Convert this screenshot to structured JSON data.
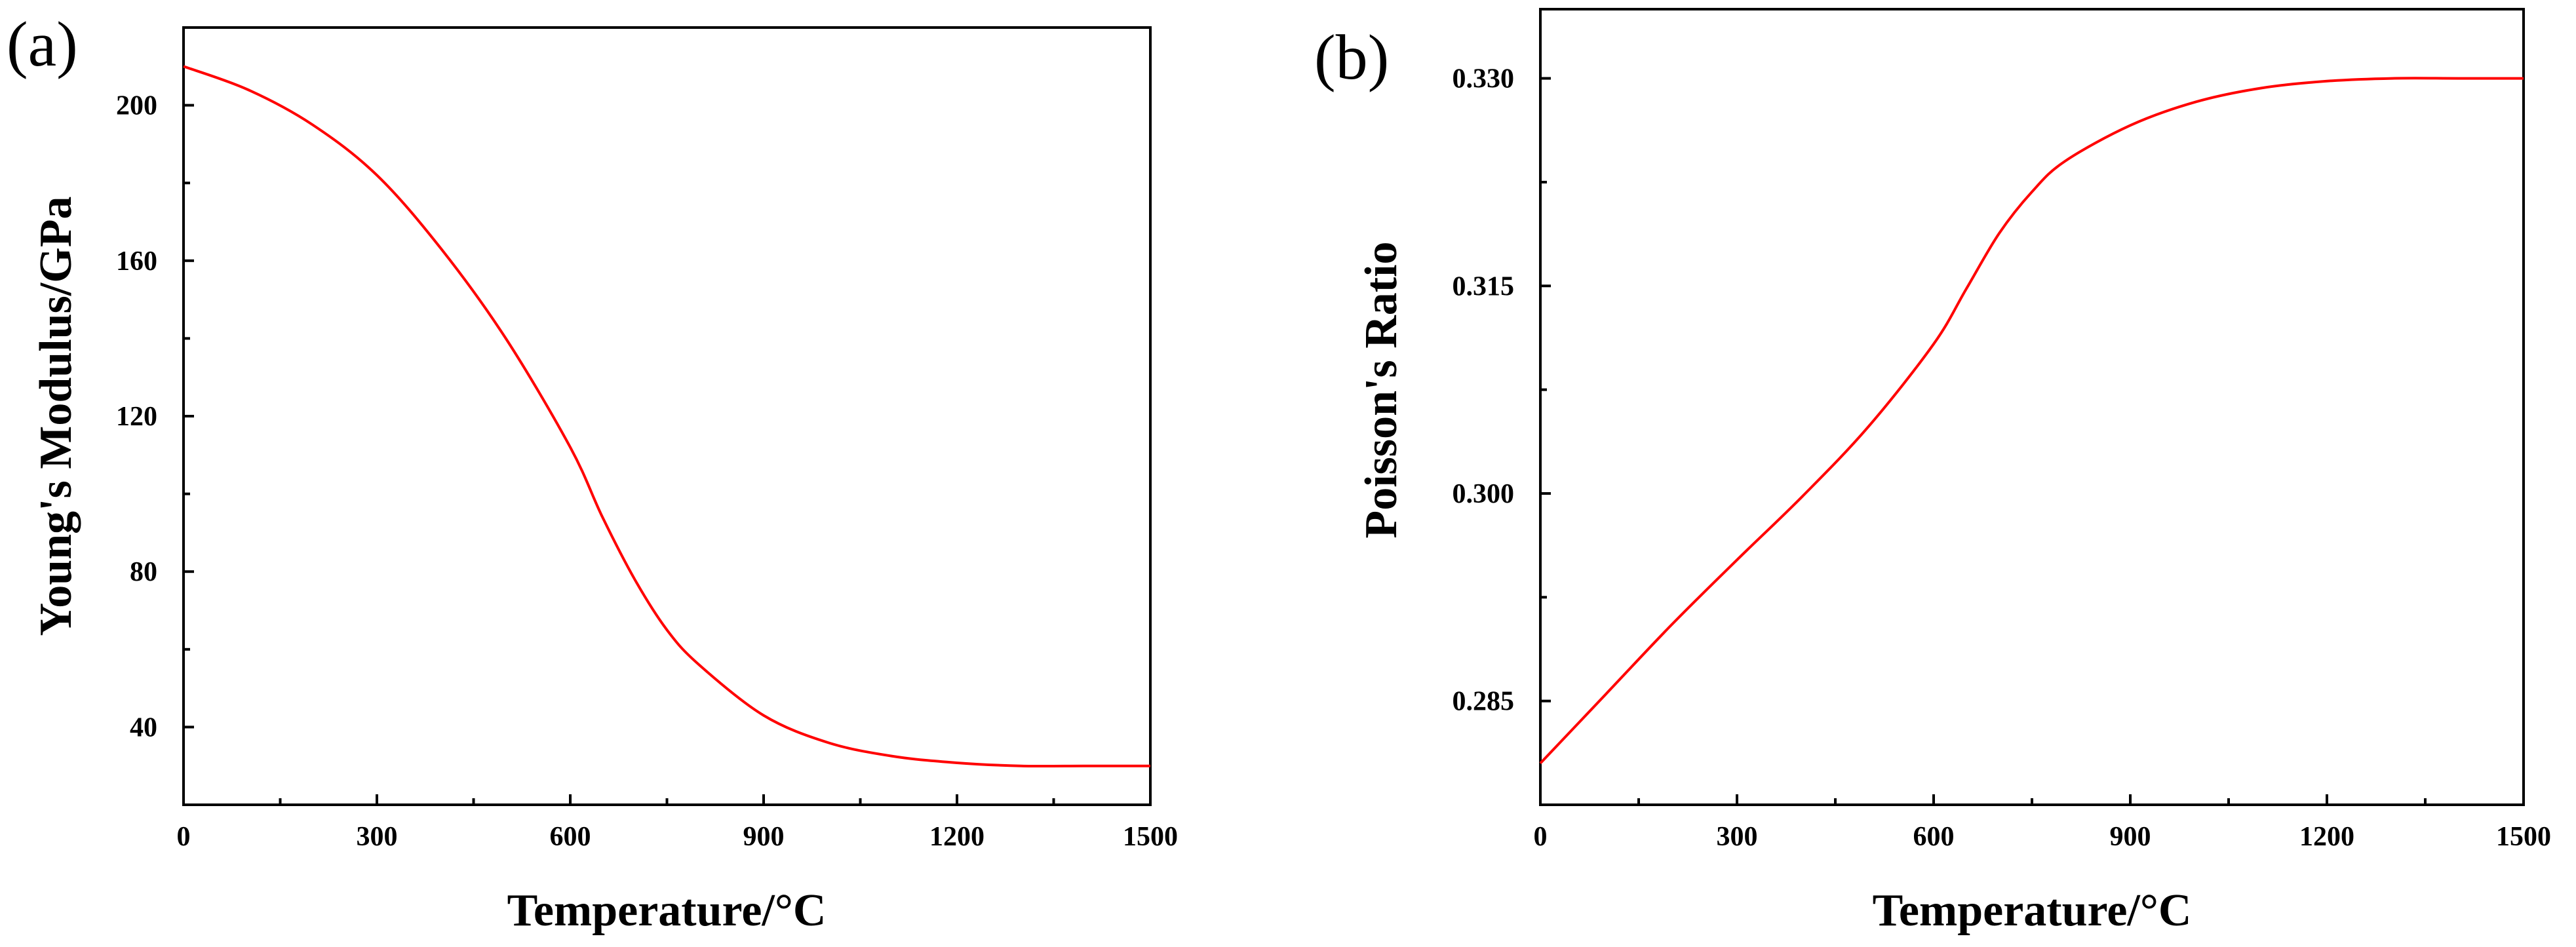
{
  "chart_data": [
    {
      "panel_label": "(a)",
      "type": "line",
      "title": "",
      "xlabel": "Temperature/°C",
      "ylabel": "Young's Modulus/GPa",
      "xlim": [
        0,
        1500
      ],
      "ylim": [
        20,
        220
      ],
      "xticks": [
        0,
        300,
        600,
        900,
        1200,
        1500
      ],
      "xtick_labels": [
        "0",
        "300",
        "600",
        "900",
        "1200",
        "1500"
      ],
      "yticks": [
        40,
        80,
        120,
        160,
        200
      ],
      "ytick_labels": [
        "40",
        "80",
        "120",
        "160",
        "200"
      ],
      "grid": false,
      "series": [
        {
          "name": "Young's Modulus",
          "color": "#ff0000",
          "x": [
            0,
            100,
            200,
            300,
            400,
            500,
            600,
            650,
            700,
            750,
            800,
            900,
            1000,
            1100,
            1200,
            1300,
            1400,
            1500
          ],
          "y": [
            210,
            204,
            195,
            182,
            163,
            140,
            112,
            94,
            78,
            65,
            56,
            43,
            36,
            32.5,
            30.8,
            30,
            30,
            30
          ]
        }
      ]
    },
    {
      "panel_label": "(b)",
      "type": "line",
      "title": "",
      "xlabel": "Temperature/°C",
      "ylabel": "Poisson's Ratio",
      "xlim": [
        0,
        1500
      ],
      "ylim": [
        0.2775,
        0.335
      ],
      "xticks": [
        0,
        300,
        600,
        900,
        1200,
        1500
      ],
      "xtick_labels": [
        "0",
        "300",
        "600",
        "900",
        "1200",
        "1500"
      ],
      "yticks": [
        0.285,
        0.3,
        0.315,
        0.33
      ],
      "ytick_labels": [
        "0.285",
        "0.300",
        "0.315",
        "0.330"
      ],
      "grid": false,
      "series": [
        {
          "name": "Poisson's Ratio",
          "color": "#ff0000",
          "x": [
            0,
            100,
            200,
            300,
            400,
            500,
            600,
            650,
            700,
            750,
            800,
            900,
            1000,
            1100,
            1200,
            1300,
            1400,
            1500
          ],
          "y": [
            0.2805,
            0.2855,
            0.2905,
            0.2952,
            0.2998,
            0.3048,
            0.3108,
            0.3148,
            0.3188,
            0.3218,
            0.324,
            0.3266,
            0.3283,
            0.3293,
            0.3298,
            0.33,
            0.33,
            0.33
          ]
        }
      ]
    }
  ]
}
